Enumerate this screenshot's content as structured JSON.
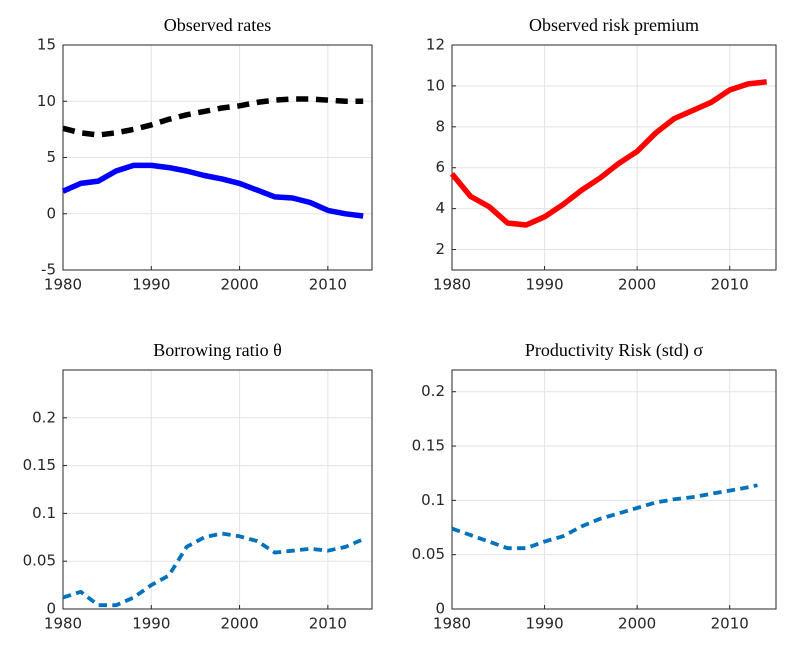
{
  "chart_data": [
    {
      "type": "line",
      "title": "Observed rates",
      "x": [
        1980,
        1982,
        1984,
        1986,
        1988,
        1990,
        1992,
        1994,
        1996,
        1998,
        2000,
        2002,
        2004,
        2006,
        2008,
        2010,
        2012,
        2014
      ],
      "xlim": [
        1980,
        2015
      ],
      "xticks": [
        1980,
        1990,
        2000,
        2010
      ],
      "ylim": [
        -5,
        15
      ],
      "yticks": [
        -5,
        0,
        5,
        10,
        15
      ],
      "grid": true,
      "series": [
        {
          "color": "#000000",
          "line_style": "dashed",
          "values": [
            7.6,
            7.2,
            7.0,
            7.2,
            7.5,
            7.9,
            8.4,
            8.8,
            9.1,
            9.4,
            9.6,
            9.9,
            10.1,
            10.2,
            10.2,
            10.1,
            10.0,
            10.0
          ]
        },
        {
          "color": "#0000ff",
          "line_style": "solid",
          "values": [
            2.0,
            2.7,
            2.9,
            3.8,
            4.3,
            4.3,
            4.1,
            3.8,
            3.4,
            3.1,
            2.7,
            2.1,
            1.5,
            1.4,
            1.0,
            0.3,
            0.0,
            -0.2
          ]
        }
      ]
    },
    {
      "type": "line",
      "title": "Observed risk premium",
      "x": [
        1980,
        1982,
        1984,
        1986,
        1988,
        1990,
        1992,
        1994,
        1996,
        1998,
        2000,
        2002,
        2004,
        2006,
        2008,
        2010,
        2012,
        2014
      ],
      "xlim": [
        1980,
        2015
      ],
      "xticks": [
        1980,
        1990,
        2000,
        2010
      ],
      "ylim": [
        1,
        12
      ],
      "yticks": [
        2,
        4,
        6,
        8,
        10,
        12
      ],
      "grid": true,
      "series": [
        {
          "color": "#ff0000",
          "line_style": "solid",
          "values": [
            5.7,
            4.6,
            4.1,
            3.3,
            3.2,
            3.6,
            4.2,
            4.9,
            5.5,
            6.2,
            6.8,
            7.7,
            8.4,
            8.8,
            9.2,
            9.8,
            10.1,
            10.2
          ]
        }
      ]
    },
    {
      "type": "line",
      "title": "Borrowing ratio θ",
      "x": [
        1980,
        1982,
        1984,
        1986,
        1988,
        1990,
        1992,
        1994,
        1996,
        1998,
        2000,
        2002,
        2004,
        2006,
        2008,
        2010,
        2012,
        2014
      ],
      "xlim": [
        1980,
        2015
      ],
      "xticks": [
        1980,
        1990,
        2000,
        2010
      ],
      "ylim": [
        0,
        0.25
      ],
      "yticks": [
        0,
        0.05,
        0.1,
        0.15,
        0.2
      ],
      "grid": true,
      "series": [
        {
          "color": "#0072bd",
          "line_style": "dashed",
          "values": [
            0.012,
            0.018,
            0.004,
            0.004,
            0.012,
            0.025,
            0.035,
            0.065,
            0.075,
            0.079,
            0.076,
            0.071,
            0.059,
            0.061,
            0.063,
            0.061,
            0.065,
            0.073
          ]
        }
      ]
    },
    {
      "type": "line",
      "title": "Productivity Risk (std) σ",
      "x": [
        1980,
        1982,
        1984,
        1986,
        1988,
        1990,
        1992,
        1994,
        1996,
        1998,
        2000,
        2002,
        2004,
        2006,
        2008,
        2010,
        2012,
        2013
      ],
      "xlim": [
        1980,
        2015
      ],
      "xticks": [
        1980,
        1990,
        2000,
        2010
      ],
      "ylim": [
        0,
        0.22
      ],
      "yticks": [
        0,
        0.05,
        0.1,
        0.15,
        0.2
      ],
      "grid": true,
      "series": [
        {
          "color": "#0072bd",
          "line_style": "dashed",
          "values": [
            0.074,
            0.068,
            0.062,
            0.056,
            0.056,
            0.062,
            0.067,
            0.076,
            0.083,
            0.088,
            0.093,
            0.098,
            0.101,
            0.103,
            0.106,
            0.109,
            0.112,
            0.114
          ]
        }
      ]
    }
  ]
}
